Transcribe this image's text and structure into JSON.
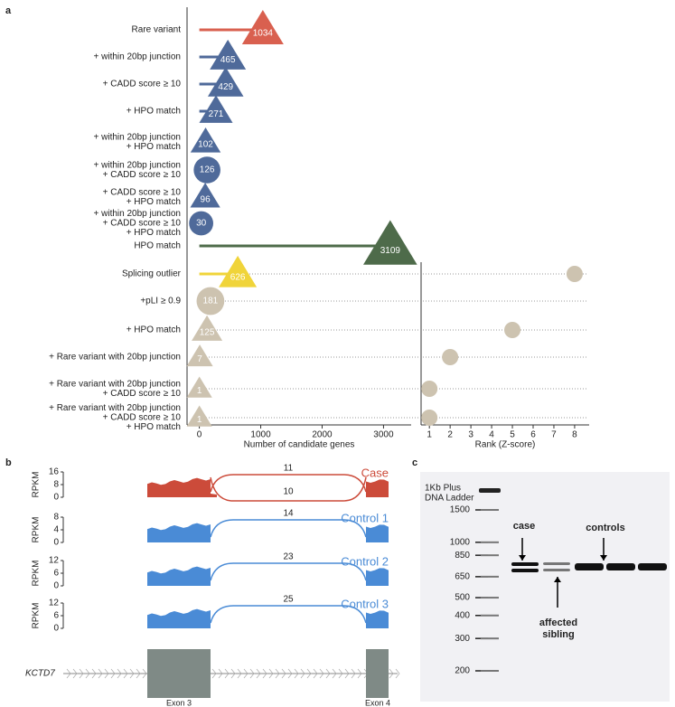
{
  "panels": {
    "a": {
      "label": "a",
      "rows": [
        {
          "label": [
            "Rare variant"
          ],
          "value": 1034,
          "shape": "triangle",
          "color": "#d9604f"
        },
        {
          "label": [
            "+ within 20bp junction"
          ],
          "value": 465,
          "shape": "triangle",
          "color": "#4f6a9a"
        },
        {
          "label": [
            "+ CADD score ≥ 10"
          ],
          "value": 429,
          "shape": "triangle",
          "color": "#4f6a9a"
        },
        {
          "label": [
            "+ HPO match"
          ],
          "value": 271,
          "shape": "triangle",
          "color": "#4f6a9a"
        },
        {
          "label": [
            "+ within 20bp junction",
            "+ HPO match"
          ],
          "value": 102,
          "shape": "triangle",
          "color": "#4f6a9a"
        },
        {
          "label": [
            "+ within 20bp junction",
            "+ CADD score ≥ 10"
          ],
          "value": 126,
          "shape": "circle",
          "color": "#4f6a9a"
        },
        {
          "label": [
            "+ CADD score ≥ 10",
            "+ HPO match"
          ],
          "value": 96,
          "shape": "triangle",
          "color": "#4f6a9a"
        },
        {
          "label": [
            "+ within 20bp junction",
            "+ CADD score ≥ 10",
            "+ HPO match"
          ],
          "value": 30,
          "shape": "circle",
          "color": "#4f6a9a"
        },
        {
          "label": [
            "HPO match"
          ],
          "value": 3109,
          "shape": "triangle",
          "color": "#4e6b4a"
        },
        {
          "label": [
            "Splicing outlier"
          ],
          "value": 626,
          "shape": "triangle",
          "color": "#f0d43a",
          "rank": 8
        },
        {
          "label": [
            "+pLI ≥ 0.9"
          ],
          "value": 181,
          "shape": "circle",
          "color": "#cdc3b0",
          "rank": null
        },
        {
          "label": [
            "+ HPO match"
          ],
          "value": 125,
          "shape": "triangle",
          "color": "#cdc3b0",
          "rank": 5
        },
        {
          "label": [
            "+ Rare variant with 20bp junction"
          ],
          "value": 7,
          "shape": "triangle",
          "color": "#cdc3b0",
          "rank": 2
        },
        {
          "label": [
            "+ Rare variant with 20bp junction",
            "+ CADD score ≥ 10"
          ],
          "value": 1,
          "shape": "triangle",
          "color": "#cdc3b0",
          "rank": 1
        },
        {
          "label": [
            "+ Rare variant with 20bp junction",
            "+ CADD score ≥ 10",
            "+ HPO match"
          ],
          "value": 1,
          "shape": "triangle",
          "color": "#cdc3b0",
          "rank": 1
        }
      ],
      "xlim": [
        -200,
        3450
      ],
      "xticks": [
        0,
        1000,
        2000,
        3000
      ],
      "xlabel": "Number of candidate genes",
      "rank_xlim": [
        0.6,
        8.7
      ],
      "rank_xticks": [
        1,
        2,
        3,
        4,
        5,
        6,
        7,
        8
      ],
      "rank_xlabel": "Rank (Z-score)",
      "rank_color": "#cdc3b0"
    },
    "b": {
      "label": "b",
      "ylabel": "RPKM",
      "tracks": [
        {
          "name": "Case",
          "color": "#cc4b3a",
          "ylim": [
            0,
            16
          ],
          "yticks": [
            0,
            8,
            16
          ],
          "junctions": [
            11,
            10
          ]
        },
        {
          "name": "Control 1",
          "color": "#4a8bd6",
          "ylim": [
            0,
            8
          ],
          "yticks": [
            0,
            4,
            8
          ],
          "junctions": [
            14
          ]
        },
        {
          "name": "Control 2",
          "color": "#4a8bd6",
          "ylim": [
            0,
            12
          ],
          "yticks": [
            0,
            6,
            12
          ],
          "junctions": [
            23
          ]
        },
        {
          "name": "Control 3",
          "color": "#4a8bd6",
          "ylim": [
            0,
            12
          ],
          "yticks": [
            0,
            6,
            12
          ],
          "junctions": [
            25
          ]
        }
      ],
      "gene": "KCTD7",
      "exons": [
        "Exon 3",
        "Exon 4"
      ]
    },
    "c": {
      "label": "c",
      "ladder_label": [
        "1Kb Plus",
        "DNA Ladder"
      ],
      "ladder": [
        1500,
        1000,
        850,
        650,
        500,
        400,
        300,
        200
      ],
      "annotations": [
        {
          "text": [
            "case"
          ]
        },
        {
          "text": [
            "affected",
            "sibling"
          ]
        },
        {
          "text": [
            "controls"
          ]
        }
      ]
    }
  }
}
